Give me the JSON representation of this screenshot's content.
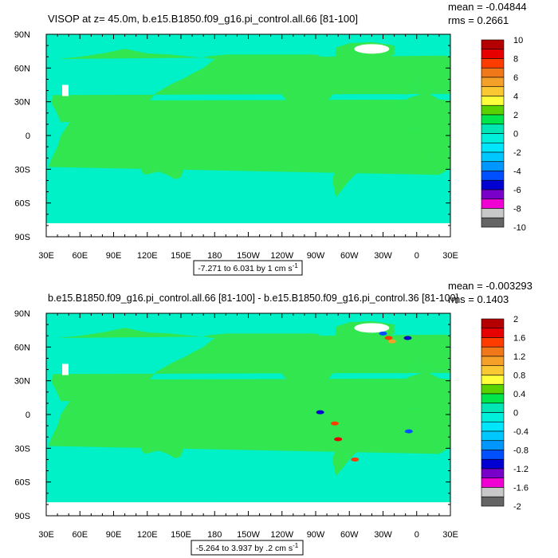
{
  "chart_data": [
    {
      "type": "heatmap",
      "title": "VISOP at z=  45.0m, b.e15.B1850.f09_g16.pi_control.all.66 [81-100]",
      "stats": [
        "mean = -0.04844",
        "rms = 0.2661"
      ],
      "contour_info": "-7.271 to 6.031 by 1 cm s",
      "contour_info_sup": "-1",
      "x_ticks": [
        "30E",
        "60E",
        "90E",
        "120E",
        "150E",
        "180",
        "150W",
        "120W",
        "90W",
        "60W",
        "30W",
        "0",
        "30E"
      ],
      "y_ticks": [
        "90N",
        "60N",
        "30N",
        "0",
        "30S",
        "60S",
        "90S"
      ],
      "xlim": [
        30,
        390
      ],
      "ylim": [
        -90,
        90
      ],
      "colorbar": {
        "labels": [
          "10",
          "8",
          "6",
          "4",
          "2",
          "0",
          "-2",
          "-4",
          "-6",
          "-8",
          "-10"
        ],
        "colors": [
          "#b40000",
          "#e60000",
          "#ff3c00",
          "#f07818",
          "#f5a028",
          "#fac832",
          "#ffff3c",
          "#5ad200",
          "#00e64b",
          "#00e6b4",
          "#00f0dc",
          "#00e6ff",
          "#00c8ff",
          "#0096ff",
          "#0050ff",
          "#0000d2",
          "#7800c8",
          "#f000d2",
          "#c8c8c8",
          "#646464"
        ]
      },
      "colors": {
        "ocean": "#00f0c8",
        "land": "#32e650",
        "ice": "#ffffff"
      }
    },
    {
      "type": "heatmap",
      "title": "b.e15.B1850.f09_g16.pi_control.all.66 [81-100] - b.e15.B1850.f09_g16.pi_control.36 [81-100]",
      "stats": [
        "mean = -0.003293",
        "rms = 0.1403"
      ],
      "contour_info": "-5.264 to 3.937 by .2 cm s",
      "contour_info_sup": "-1",
      "x_ticks": [
        "30E",
        "60E",
        "90E",
        "120E",
        "150E",
        "180",
        "150W",
        "120W",
        "90W",
        "60W",
        "30W",
        "0",
        "30E"
      ],
      "y_ticks": [
        "90N",
        "60N",
        "30N",
        "0",
        "30S",
        "60S",
        "90S"
      ],
      "xlim": [
        30,
        390
      ],
      "ylim": [
        -90,
        90
      ],
      "colorbar": {
        "labels": [
          "2",
          "1.6",
          "1.2",
          "0.8",
          "0.4",
          "0",
          "-0.4",
          "-0.8",
          "-1.2",
          "-1.6",
          "-2"
        ],
        "colors": [
          "#b40000",
          "#e60000",
          "#ff3c00",
          "#f07818",
          "#f5a028",
          "#fac832",
          "#ffff3c",
          "#5ad200",
          "#00e64b",
          "#00e6b4",
          "#00f0dc",
          "#00e6ff",
          "#00c8ff",
          "#0096ff",
          "#0050ff",
          "#0000d2",
          "#7800c8",
          "#f000d2",
          "#c8c8c8",
          "#646464"
        ]
      },
      "colors": {
        "ocean": "#00f0c8",
        "land": "#32e650",
        "ice": "#ffffff"
      }
    }
  ]
}
